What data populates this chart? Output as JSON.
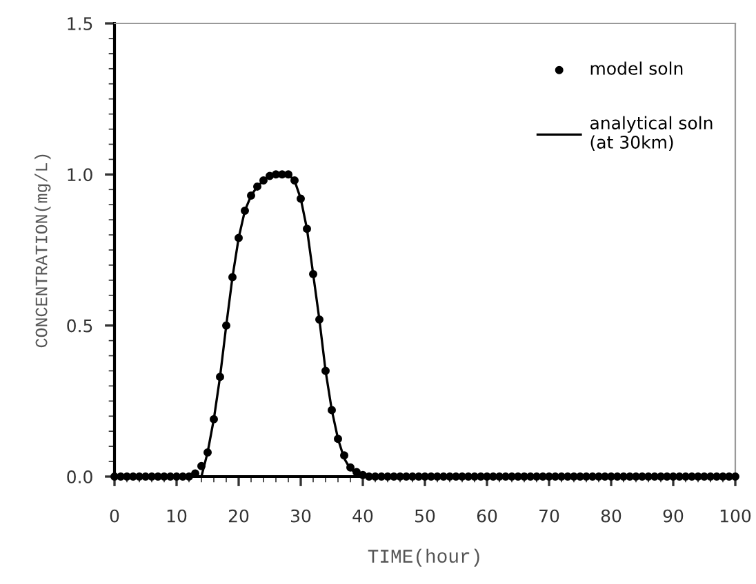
{
  "chart_data": {
    "type": "line",
    "xlabel": "TIME(hour)",
    "ylabel": "CONCENTRATION(mg/L)",
    "xlim": [
      0,
      100
    ],
    "ylim": [
      0,
      1.5
    ],
    "xticks": [
      0,
      10,
      20,
      30,
      40,
      50,
      60,
      70,
      80,
      90,
      100
    ],
    "yticks": [
      {
        "value": 0,
        "label": "0.0"
      },
      {
        "value": 0.5,
        "label": "0.5"
      },
      {
        "value": 1.0,
        "label": "1.0"
      },
      {
        "value": 1.5,
        "label": "1.5"
      }
    ],
    "grid": false,
    "legend": "top right",
    "series": [
      {
        "name": "model soln",
        "type": "scatter",
        "marker": "circle",
        "color": "#000000",
        "x": [
          0,
          1,
          2,
          3,
          4,
          5,
          6,
          7,
          8,
          9,
          10,
          11,
          12,
          13,
          14,
          15,
          16,
          17,
          18,
          19,
          20,
          21,
          22,
          23,
          24,
          25,
          26,
          27,
          28,
          29,
          30,
          31,
          32,
          33,
          34,
          35,
          36,
          37,
          38,
          39,
          40,
          41,
          42,
          43,
          44,
          45,
          46,
          47,
          48,
          49,
          50,
          51,
          52,
          53,
          54,
          55,
          56,
          57,
          58,
          59,
          60,
          61,
          62,
          63,
          64,
          65,
          66,
          67,
          68,
          69,
          70,
          71,
          72,
          73,
          74,
          75,
          76,
          77,
          78,
          79,
          80,
          81,
          82,
          83,
          84,
          85,
          86,
          87,
          88,
          89,
          90,
          91,
          92,
          93,
          94,
          95,
          96,
          97,
          98,
          99,
          100
        ],
        "values": [
          0,
          0,
          0,
          0,
          0,
          0,
          0,
          0,
          0,
          0,
          0,
          0,
          0,
          0.01,
          0.035,
          0.08,
          0.19,
          0.33,
          0.5,
          0.66,
          0.79,
          0.88,
          0.93,
          0.96,
          0.98,
          0.995,
          1.0,
          1.0,
          1.0,
          0.98,
          0.92,
          0.82,
          0.67,
          0.52,
          0.35,
          0.22,
          0.125,
          0.07,
          0.03,
          0.015,
          0.005,
          0,
          0,
          0,
          0,
          0,
          0,
          0,
          0,
          0,
          0,
          0,
          0,
          0,
          0,
          0,
          0,
          0,
          0,
          0,
          0,
          0,
          0,
          0,
          0,
          0,
          0,
          0,
          0,
          0,
          0,
          0,
          0,
          0,
          0,
          0,
          0,
          0,
          0,
          0,
          0,
          0,
          0,
          0,
          0,
          0,
          0,
          0,
          0,
          0,
          0,
          0,
          0,
          0,
          0,
          0,
          0,
          0,
          0,
          0,
          0
        ]
      },
      {
        "name": "analytical soln\n(at 30km)",
        "line_style": "solid",
        "marker": "none",
        "color": "#000000",
        "x": [
          0,
          14,
          15,
          16,
          17,
          18,
          19,
          20,
          21,
          22,
          23,
          24,
          25,
          26,
          27,
          28,
          29,
          30,
          31,
          32,
          33,
          34,
          35,
          36,
          37,
          38,
          39,
          40,
          41,
          100
        ],
        "values": [
          0,
          0,
          0.08,
          0.19,
          0.33,
          0.5,
          0.66,
          0.79,
          0.88,
          0.93,
          0.96,
          0.98,
          0.995,
          1.0,
          1.0,
          1.0,
          0.98,
          0.92,
          0.82,
          0.67,
          0.52,
          0.35,
          0.22,
          0.125,
          0.06,
          0.025,
          0.01,
          0.003,
          0,
          0
        ]
      }
    ]
  }
}
